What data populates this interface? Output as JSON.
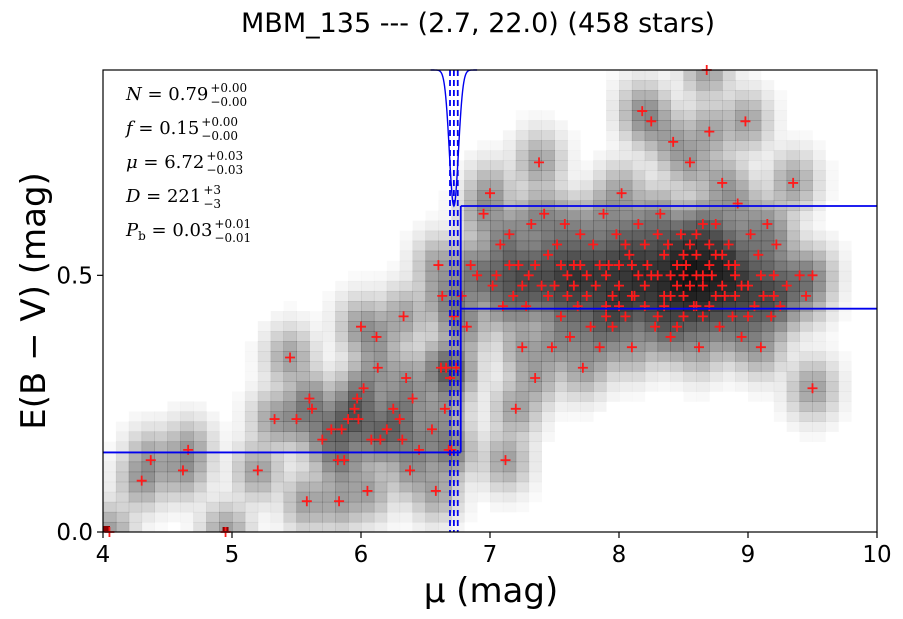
{
  "chart_data": {
    "type": "scatter",
    "title": "MBM_135 --- (2.7, 22.0) (458 stars)",
    "xlabel": "μ (mag)",
    "ylabel": "E(B − V) (mag)",
    "xlim": [
      4,
      10
    ],
    "ylim": [
      0,
      0.9
    ],
    "xticks": [
      "4",
      "5",
      "6",
      "7",
      "8",
      "9",
      "10"
    ],
    "yticks": [
      "0.0",
      "0.5"
    ],
    "ytick_values": [
      0.0,
      0.5
    ],
    "grid": false,
    "colors": {
      "points": "#ff1a1a",
      "fit": "#0000ee",
      "density": "#000000",
      "origin_marker": "#8b0000"
    },
    "annotations": [
      {
        "name": "N",
        "value": "0.79",
        "plus": "+0.00",
        "minus": "−0.00"
      },
      {
        "name": "f",
        "value": "0.15",
        "plus": "+0.00",
        "minus": "−0.00"
      },
      {
        "name": "μ",
        "value": "6.72",
        "plus": "+0.03",
        "minus": "−0.03"
      },
      {
        "name": "D",
        "value": "221",
        "plus": "+3",
        "minus": "−3"
      },
      {
        "name": "P_b",
        "value": "0.03",
        "plus": "+0.01",
        "minus": "−0.01"
      }
    ],
    "fit": {
      "break_distance": 6.72,
      "break_distance_low": 6.69,
      "break_distance_high": 6.75,
      "foreground_reddening": 0.155,
      "background_reddening_low": 0.435,
      "background_reddening_high": 0.635
    },
    "stars_plotted": [
      [
        4.05,
        0.0
      ],
      [
        4.3,
        0.1
      ],
      [
        4.37,
        0.14
      ],
      [
        4.62,
        0.12
      ],
      [
        4.66,
        0.16
      ],
      [
        4.95,
        0.0
      ],
      [
        5.2,
        0.12
      ],
      [
        5.33,
        0.22
      ],
      [
        5.45,
        0.34
      ],
      [
        5.5,
        0.22
      ],
      [
        5.58,
        0.06
      ],
      [
        5.6,
        0.26
      ],
      [
        5.62,
        0.24
      ],
      [
        5.7,
        0.18
      ],
      [
        5.77,
        0.2
      ],
      [
        5.82,
        0.14
      ],
      [
        5.83,
        0.06
      ],
      [
        5.85,
        0.2
      ],
      [
        5.87,
        0.14
      ],
      [
        5.9,
        0.22
      ],
      [
        5.95,
        0.24
      ],
      [
        5.97,
        0.26
      ],
      [
        5.98,
        0.22
      ],
      [
        6.0,
        0.4
      ],
      [
        6.02,
        0.28
      ],
      [
        6.05,
        0.08
      ],
      [
        6.08,
        0.18
      ],
      [
        6.12,
        0.38
      ],
      [
        6.13,
        0.32
      ],
      [
        6.15,
        0.18
      ],
      [
        6.2,
        0.2
      ],
      [
        6.25,
        0.24
      ],
      [
        6.3,
        0.22
      ],
      [
        6.32,
        0.18
      ],
      [
        6.33,
        0.42
      ],
      [
        6.35,
        0.3
      ],
      [
        6.38,
        0.12
      ],
      [
        6.4,
        0.26
      ],
      [
        6.45,
        0.16
      ],
      [
        6.55,
        0.2
      ],
      [
        6.58,
        0.08
      ],
      [
        6.6,
        0.52
      ],
      [
        6.62,
        0.32
      ],
      [
        6.63,
        0.46
      ],
      [
        6.65,
        0.24
      ],
      [
        6.66,
        0.32
      ],
      [
        6.68,
        0.16
      ],
      [
        6.69,
        0.3
      ],
      [
        6.7,
        0.16
      ],
      [
        6.72,
        0.42
      ],
      [
        6.74,
        0.32
      ],
      [
        6.78,
        0.46
      ],
      [
        6.82,
        0.4
      ],
      [
        6.85,
        0.52
      ],
      [
        6.9,
        0.5
      ],
      [
        6.95,
        0.62
      ],
      [
        7.0,
        0.66
      ],
      [
        7.02,
        0.48
      ],
      [
        7.05,
        0.5
      ],
      [
        7.08,
        0.56
      ],
      [
        7.1,
        0.44
      ],
      [
        7.12,
        0.14
      ],
      [
        7.15,
        0.58
      ],
      [
        7.18,
        0.46
      ],
      [
        7.2,
        0.24
      ],
      [
        7.22,
        0.52
      ],
      [
        7.25,
        0.36
      ],
      [
        7.28,
        0.44
      ],
      [
        7.3,
        0.5
      ],
      [
        7.32,
        0.6
      ],
      [
        7.35,
        0.3
      ],
      [
        7.38,
        0.72
      ],
      [
        7.4,
        0.48
      ],
      [
        7.42,
        0.62
      ],
      [
        7.45,
        0.54
      ],
      [
        7.48,
        0.36
      ],
      [
        7.5,
        0.48
      ],
      [
        7.52,
        0.56
      ],
      [
        7.55,
        0.42
      ],
      [
        7.58,
        0.6
      ],
      [
        7.6,
        0.46
      ],
      [
        7.62,
        0.38
      ],
      [
        7.65,
        0.52
      ],
      [
        7.68,
        0.44
      ],
      [
        7.7,
        0.58
      ],
      [
        7.72,
        0.32
      ],
      [
        7.75,
        0.5
      ],
      [
        7.78,
        0.4
      ],
      [
        7.8,
        0.56
      ],
      [
        7.82,
        0.48
      ],
      [
        7.85,
        0.36
      ],
      [
        7.88,
        0.62
      ],
      [
        7.9,
        0.44
      ],
      [
        7.92,
        0.52
      ],
      [
        7.95,
        0.4
      ],
      [
        7.98,
        0.58
      ],
      [
        8.0,
        0.48
      ],
      [
        8.02,
        0.66
      ],
      [
        8.05,
        0.42
      ],
      [
        8.08,
        0.54
      ],
      [
        8.1,
        0.36
      ],
      [
        8.12,
        0.46
      ],
      [
        8.15,
        0.6
      ],
      [
        8.18,
        0.82
      ],
      [
        8.2,
        0.44
      ],
      [
        8.22,
        0.52
      ],
      [
        8.25,
        0.8
      ],
      [
        8.28,
        0.4
      ],
      [
        8.3,
        0.5
      ],
      [
        8.32,
        0.62
      ],
      [
        8.35,
        0.46
      ],
      [
        8.38,
        0.56
      ],
      [
        8.4,
        0.38
      ],
      [
        8.42,
        0.76
      ],
      [
        8.45,
        0.48
      ],
      [
        8.48,
        0.58
      ],
      [
        8.5,
        0.42
      ],
      [
        8.52,
        0.52
      ],
      [
        8.55,
        0.72
      ],
      [
        8.58,
        0.44
      ],
      [
        8.6,
        0.54
      ],
      [
        8.62,
        0.36
      ],
      [
        8.65,
        0.48
      ],
      [
        8.68,
        0.9
      ],
      [
        8.7,
        0.78
      ],
      [
        8.72,
        0.5
      ],
      [
        8.75,
        0.6
      ],
      [
        8.78,
        0.4
      ],
      [
        8.8,
        0.68
      ],
      [
        8.82,
        0.46
      ],
      [
        8.85,
        0.56
      ],
      [
        8.88,
        0.42
      ],
      [
        8.9,
        0.52
      ],
      [
        8.92,
        0.64
      ],
      [
        8.95,
        0.38
      ],
      [
        8.98,
        0.8
      ],
      [
        9.0,
        0.48
      ],
      [
        9.02,
        0.58
      ],
      [
        9.05,
        0.44
      ],
      [
        9.08,
        0.54
      ],
      [
        9.1,
        0.36
      ],
      [
        9.12,
        0.46
      ],
      [
        9.15,
        0.6
      ],
      [
        9.18,
        0.42
      ],
      [
        9.2,
        0.5
      ],
      [
        9.22,
        0.56
      ],
      [
        9.25,
        0.44
      ],
      [
        9.3,
        0.48
      ],
      [
        9.35,
        0.68
      ],
      [
        9.4,
        0.5
      ],
      [
        9.45,
        0.46
      ],
      [
        9.5,
        0.28
      ],
      [
        9.5,
        0.5
      ],
      [
        7.9,
        0.5
      ],
      [
        8.0,
        0.44
      ],
      [
        8.1,
        0.52
      ],
      [
        8.2,
        0.48
      ],
      [
        8.3,
        0.42
      ],
      [
        8.4,
        0.5
      ],
      [
        8.5,
        0.46
      ],
      [
        8.6,
        0.44
      ],
      [
        8.7,
        0.52
      ],
      [
        8.8,
        0.48
      ],
      [
        8.9,
        0.46
      ],
      [
        8.25,
        0.5
      ],
      [
        8.35,
        0.44
      ],
      [
        8.45,
        0.52
      ],
      [
        8.55,
        0.48
      ],
      [
        8.65,
        0.42
      ],
      [
        8.75,
        0.46
      ],
      [
        8.05,
        0.56
      ],
      [
        8.15,
        0.5
      ],
      [
        7.95,
        0.46
      ],
      [
        7.85,
        0.52
      ],
      [
        8.45,
        0.4
      ],
      [
        8.55,
        0.56
      ],
      [
        8.65,
        0.5
      ],
      [
        8.85,
        0.52
      ],
      [
        9.0,
        0.42
      ],
      [
        7.75,
        0.46
      ],
      [
        7.65,
        0.48
      ],
      [
        8.35,
        0.54
      ],
      [
        8.5,
        0.5
      ],
      [
        8.6,
        0.58
      ],
      [
        8.7,
        0.44
      ],
      [
        8.2,
        0.56
      ],
      [
        8.1,
        0.46
      ],
      [
        8.0,
        0.52
      ],
      [
        7.9,
        0.42
      ],
      [
        8.8,
        0.54
      ],
      [
        8.9,
        0.5
      ],
      [
        9.1,
        0.5
      ],
      [
        9.2,
        0.46
      ],
      [
        8.3,
        0.58
      ],
      [
        8.4,
        0.46
      ],
      [
        8.5,
        0.54
      ],
      [
        8.6,
        0.5
      ],
      [
        8.7,
        0.56
      ],
      [
        8.75,
        0.54
      ],
      [
        8.65,
        0.6
      ],
      [
        8.95,
        0.48
      ],
      [
        7.7,
        0.52
      ],
      [
        7.6,
        0.5
      ],
      [
        7.55,
        0.52
      ],
      [
        7.45,
        0.46
      ],
      [
        7.35,
        0.52
      ],
      [
        7.25,
        0.48
      ],
      [
        7.15,
        0.52
      ]
    ]
  }
}
